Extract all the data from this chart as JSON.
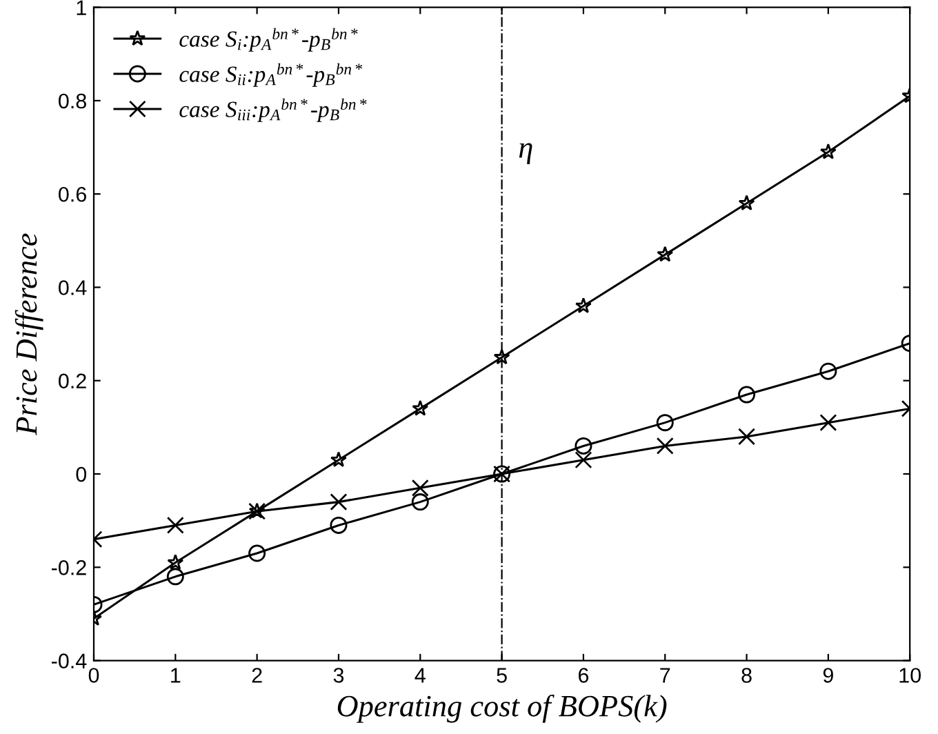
{
  "chart_data": {
    "type": "line",
    "xlabel": "Operating cost of BOPS(k)",
    "ylabel": "Price Difference",
    "x": [
      0,
      1,
      2,
      3,
      4,
      5,
      6,
      7,
      8,
      9,
      10
    ],
    "series": [
      {
        "name": "case S$_{i}$:p$_{A}$$^{bn*}$-p$_{B}$$^{bn*}$",
        "color": "#000000",
        "marker": "star",
        "values": [
          -0.31,
          -0.19,
          -0.08,
          0.03,
          0.14,
          0.25,
          0.36,
          0.47,
          0.58,
          0.69,
          0.81
        ]
      },
      {
        "name": "case S$_{ii}$:p$_{A}$$^{bn*}$-p$_{B}$$^{bn*}$",
        "color": "#000000",
        "marker": "circle",
        "values": [
          -0.28,
          -0.22,
          -0.17,
          -0.11,
          -0.06,
          0,
          0.06,
          0.11,
          0.17,
          0.22,
          0.28
        ]
      },
      {
        "name": "case S$_{iii}$:p$_{A}$$^{bn*}$-p$_{B}$$^{bn*}$",
        "color": "#000000",
        "marker": "cross",
        "values": [
          -0.14,
          -0.11,
          -0.08,
          -0.06,
          -0.03,
          0,
          0.03,
          0.06,
          0.08,
          0.11,
          0.14
        ]
      }
    ],
    "xlim": [
      0,
      10
    ],
    "xticks": [
      0,
      1,
      2,
      3,
      4,
      5,
      6,
      7,
      8,
      9,
      10
    ],
    "ylim": [
      -0.4,
      1
    ],
    "yticks": [
      -0.4,
      -0.2,
      0,
      0.2,
      0.4,
      0.6,
      0.8,
      1
    ],
    "ref_lines": [
      {
        "axis": "x",
        "value": 5,
        "label": "η",
        "line_style": "dashdot",
        "color": "#000000"
      }
    ],
    "grid": false,
    "legend": "top left",
    "line_style": "solid"
  }
}
